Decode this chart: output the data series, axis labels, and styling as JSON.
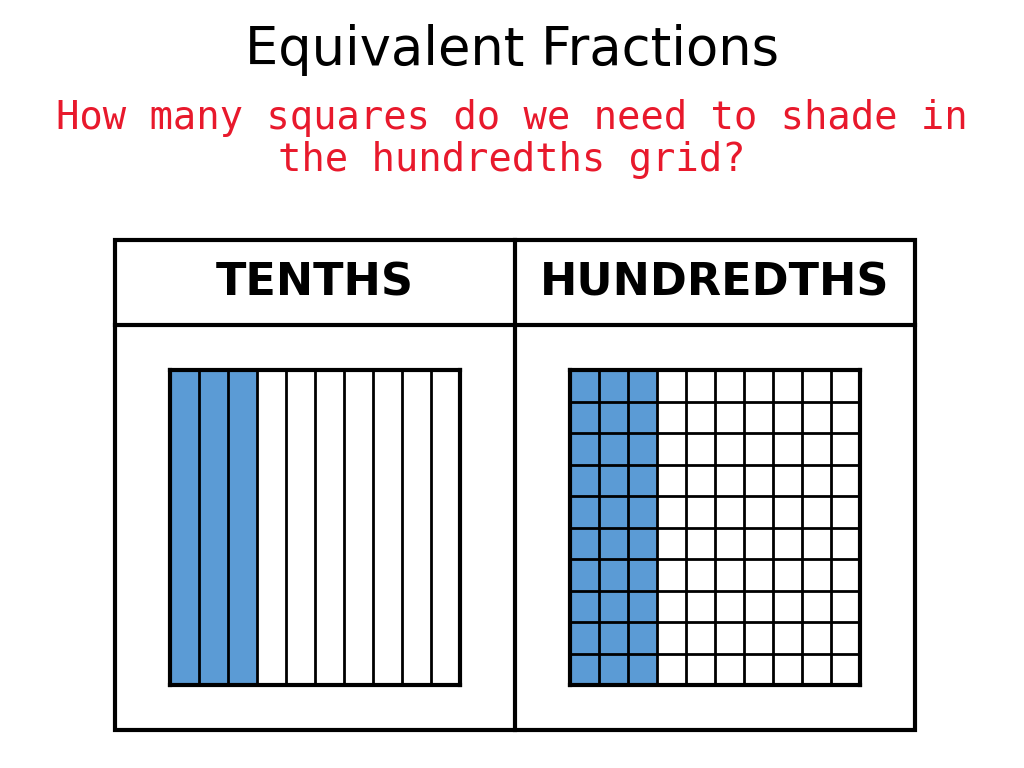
{
  "title": "Equivalent Fractions",
  "subtitle_line1": "How many squares do we need to shade in",
  "subtitle_line2": "the hundredths grid?",
  "title_color": "#000000",
  "subtitle_color": "#e8192c",
  "left_label": "TENTHS",
  "right_label": "HUNDREDTHS",
  "blue_color": "#5b9bd5",
  "tenths_shaded": 3,
  "tenths_total": 10,
  "hundredths_shaded_cols": 3,
  "hundredths_cols": 10,
  "hundredths_rows": 10,
  "background_color": "#ffffff",
  "border_color": "#000000",
  "title_fontsize": 38,
  "subtitle_fontsize": 28,
  "label_fontsize": 32
}
